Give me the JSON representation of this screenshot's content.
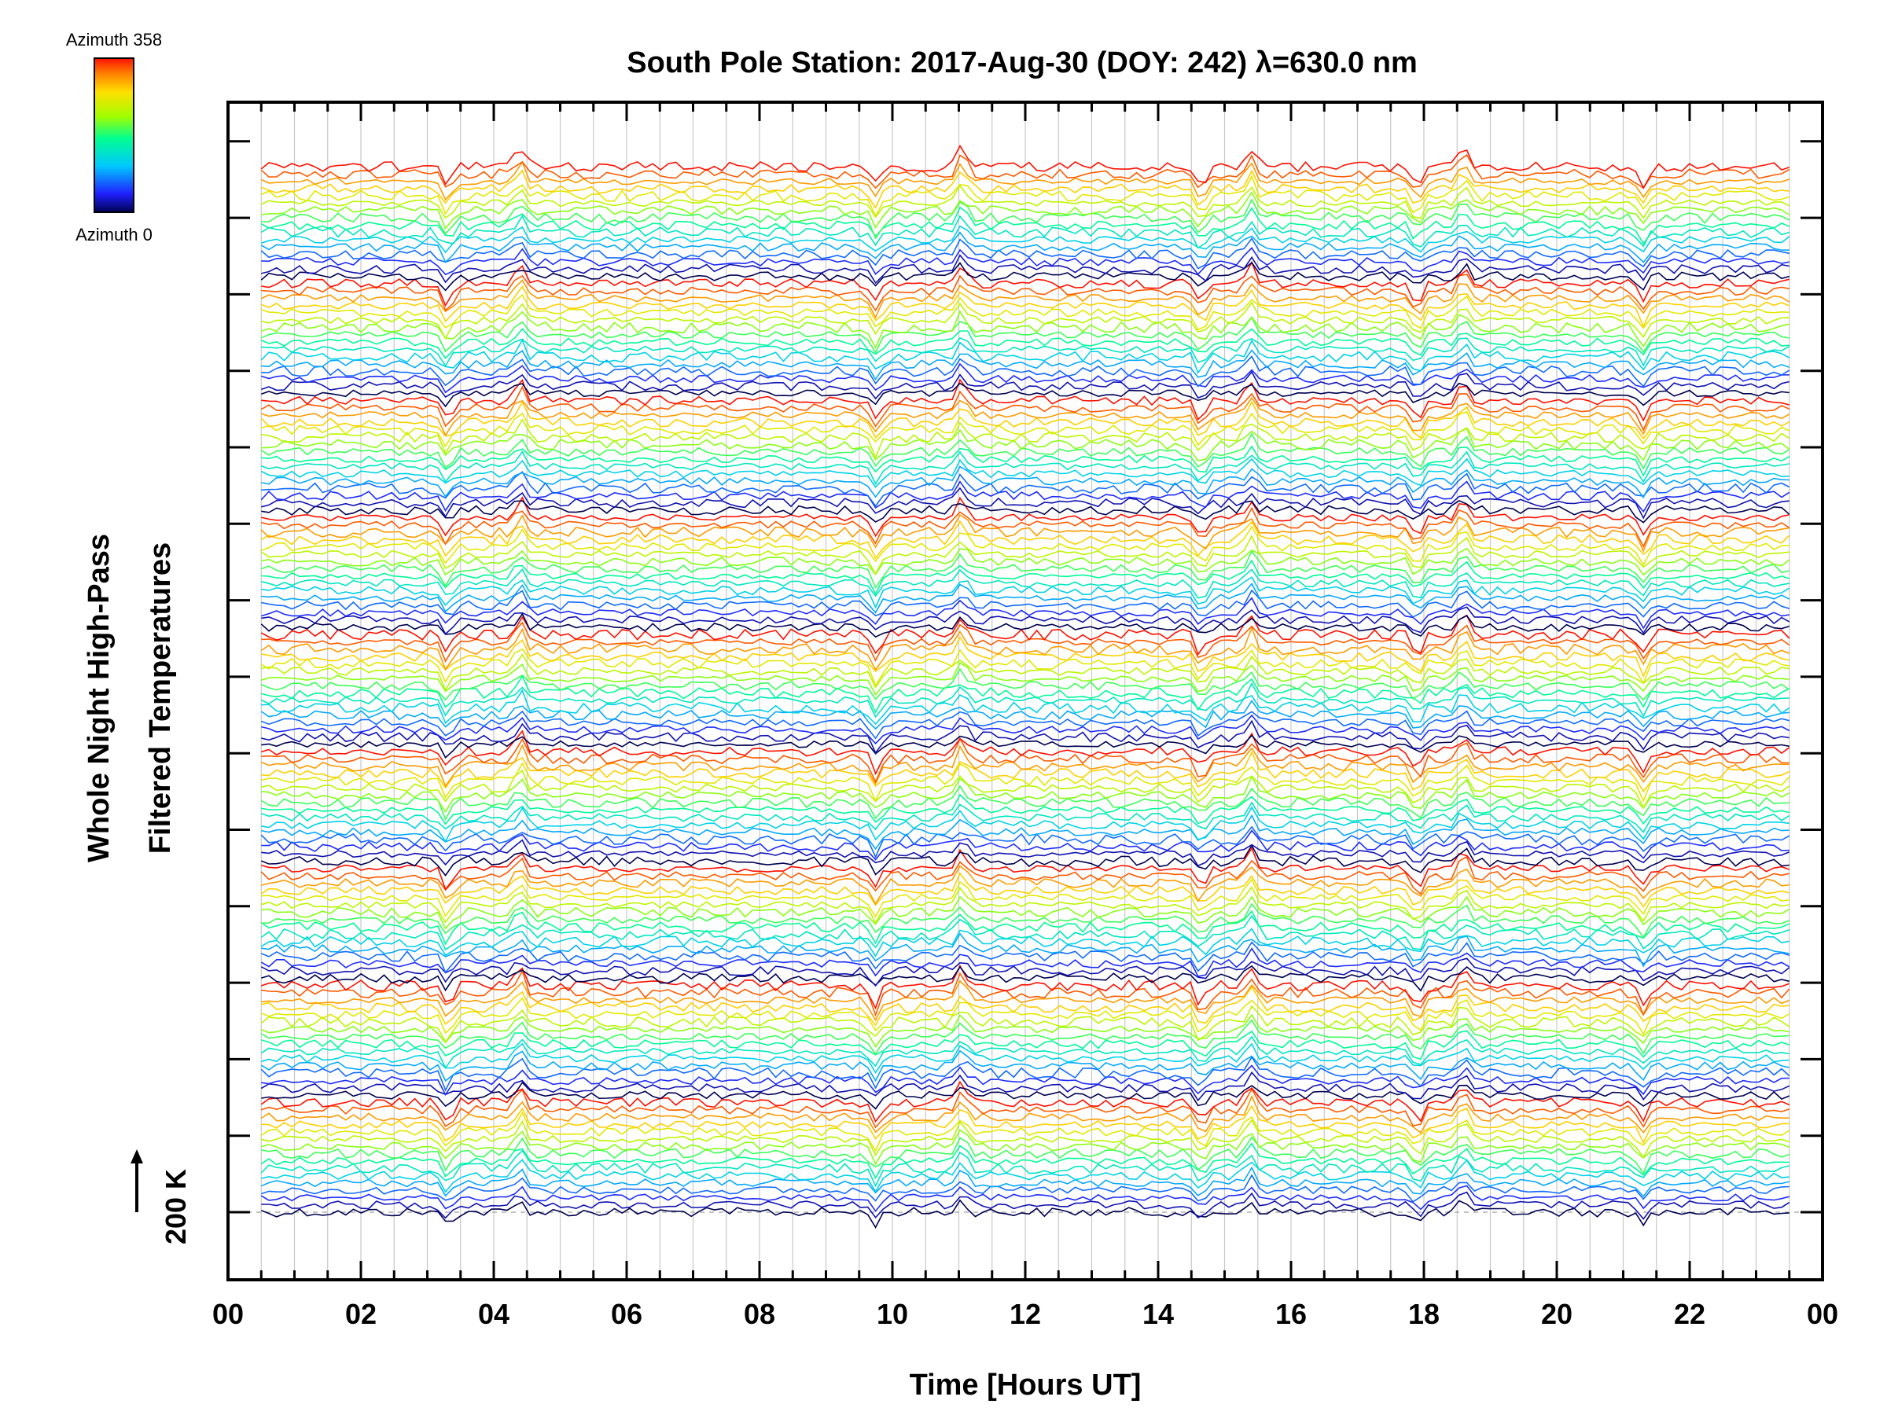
{
  "chart_data": {
    "type": "line",
    "title": "South Pole Station: 2017-Aug-30 (DOY: 242) λ=630.0 nm",
    "xlabel": "Time [Hours UT]",
    "ylabel_line1": "Whole Night High-Pass",
    "ylabel_line2": "Filtered Temperatures",
    "x_unit": "hours UT",
    "xlim": [
      0,
      24
    ],
    "x_tick_labels": [
      "00",
      "02",
      "04",
      "06",
      "08",
      "10",
      "12",
      "14",
      "16",
      "18",
      "20",
      "22",
      "00"
    ],
    "grid": true,
    "scale_marker": "200 K",
    "colorbar": {
      "top_label": "Azimuth 358",
      "bottom_label": "Azimuth 0",
      "colormap": "rainbow"
    },
    "colors": {
      "low_azimuth": "#000050",
      "high_azimuth": "#ff2000",
      "frame": "#000000",
      "grid": "#c8c8c8"
    },
    "series_count": 144,
    "series_azimuth_order": "each group runs from azimuth 0 (dark blue) at the bottom to azimuth 358 (red) at the top, then repeats",
    "spike_events_hours": [
      3.3,
      4.4,
      9.75,
      11.05,
      14.65,
      15.4,
      17.9,
      18.6,
      21.3
    ]
  }
}
